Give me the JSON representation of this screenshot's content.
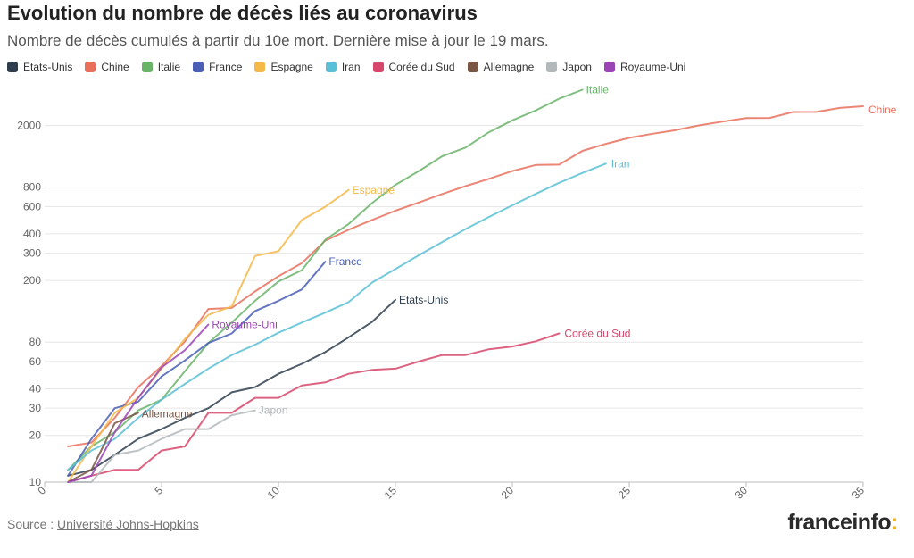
{
  "chart_data": {
    "type": "line",
    "title": "Evolution du nombre de décès liés au coronavirus",
    "subtitle": "Nombre de décès cumulés à partir du 10e mort. Dernière mise à jour le 19 mars.",
    "yscale": "log",
    "xlim": [
      0,
      35
    ],
    "ylim": [
      10,
      3000
    ],
    "x_ticks": [
      "0",
      "5",
      "10",
      "15",
      "20",
      "25",
      "30",
      "35"
    ],
    "y_ticks": [
      "10",
      "20",
      "30",
      "40",
      "60",
      "80",
      "200",
      "300",
      "400",
      "600",
      "800",
      "2000"
    ],
    "legend_position": "top",
    "series": [
      {
        "name": "Etats-Unis",
        "color": "#2e3e4f",
        "label": "Etats-Unis",
        "x": [
          1,
          2,
          3,
          4,
          5,
          6,
          7,
          8,
          9,
          10,
          11,
          12,
          13,
          14,
          15
        ],
        "y": [
          11,
          12,
          15,
          19,
          22,
          26,
          30,
          38,
          41,
          50,
          58,
          69,
          86,
          108,
          150
        ]
      },
      {
        "name": "Chine",
        "color": "#e8705d",
        "label": "Chine",
        "x": [
          1,
          2,
          3,
          4,
          5,
          6,
          7,
          8,
          9,
          10,
          11,
          12,
          13,
          14,
          15,
          16,
          17,
          18,
          19,
          20,
          21,
          22,
          23,
          24,
          25,
          26,
          27,
          28,
          29,
          30,
          31,
          32,
          33,
          34,
          35
        ],
        "y": [
          17,
          18,
          26,
          41,
          56,
          81,
          131,
          133,
          170,
          213,
          259,
          361,
          425,
          491,
          564,
          637,
          723,
          812,
          906,
          1016,
          1113,
          1118,
          1371,
          1523,
          1665,
          1770,
          1868,
          2004,
          2118,
          2236,
          2238,
          2443,
          2445,
          2595,
          2663
        ]
      },
      {
        "name": "Italie",
        "color": "#6ab46a",
        "label": "Italie",
        "x": [
          1,
          2,
          3,
          4,
          5,
          6,
          7,
          8,
          9,
          10,
          11,
          12,
          13,
          14,
          15,
          16,
          17,
          18,
          19,
          20,
          21,
          22,
          23
        ],
        "y": [
          12,
          17,
          21,
          29,
          34,
          52,
          79,
          107,
          148,
          197,
          233,
          366,
          463,
          631,
          827,
          1016,
          1266,
          1441,
          1809,
          2158,
          2503,
          2978,
          3405
        ]
      },
      {
        "name": "France",
        "color": "#4a5fb5",
        "label": "France",
        "x": [
          1,
          2,
          3,
          4,
          5,
          6,
          7,
          8,
          9,
          10,
          11,
          12
        ],
        "y": [
          11,
          19,
          30,
          33,
          48,
          61,
          79,
          91,
          127,
          148,
          175,
          264
        ]
      },
      {
        "name": "Espagne",
        "color": "#f5b94a",
        "label": "Espagne",
        "x": [
          1,
          2,
          3,
          4,
          5,
          6,
          7,
          8,
          9,
          10,
          11,
          12,
          13
        ],
        "y": [
          10,
          17,
          28,
          35,
          54,
          84,
          120,
          136,
          288,
          309,
          491,
          598,
          767
        ]
      },
      {
        "name": "Iran",
        "color": "#5bbfd6",
        "label": "Iran",
        "x": [
          1,
          2,
          3,
          4,
          5,
          6,
          7,
          8,
          9,
          10,
          11,
          12,
          13,
          14,
          15,
          16,
          17,
          18,
          19,
          20,
          21,
          22,
          23,
          24
        ],
        "y": [
          12,
          16,
          19,
          26,
          34,
          43,
          54,
          66,
          77,
          92,
          107,
          124,
          145,
          194,
          237,
          291,
          354,
          429,
          514,
          611,
          724,
          853,
          988,
          1135
        ]
      },
      {
        "name": "Corée du Sud",
        "color": "#d6476b",
        "label": "Corée du Sud",
        "x": [
          1,
          2,
          3,
          4,
          5,
          6,
          7,
          8,
          9,
          10,
          11,
          12,
          13,
          14,
          15,
          16,
          17,
          18,
          19,
          20,
          21,
          22
        ],
        "y": [
          10,
          11,
          12,
          12,
          16,
          17,
          28,
          28,
          35,
          35,
          42,
          44,
          50,
          53,
          54,
          60,
          66,
          66,
          72,
          75,
          81,
          91
        ]
      },
      {
        "name": "Allemagne",
        "color": "#7a5543",
        "label": "Allemagne",
        "x": [
          1,
          2,
          3,
          4
        ],
        "y": [
          10,
          12,
          24,
          28
        ]
      },
      {
        "name": "Japon",
        "color": "#b3b8bb",
        "label": "Japon",
        "x": [
          1,
          2,
          3,
          4,
          5,
          6,
          7,
          8,
          9
        ],
        "y": [
          10,
          10,
          15,
          16,
          19,
          22,
          22,
          27,
          29
        ]
      },
      {
        "name": "Royaume-Uni",
        "color": "#9b44b5",
        "label": "Royaume-Uni",
        "x": [
          1,
          2,
          3,
          4,
          5,
          6,
          7
        ],
        "y": [
          10,
          11,
          21,
          35,
          55,
          71,
          104
        ]
      }
    ]
  },
  "footer": {
    "source_label": "Source :",
    "source_link": "Université Johns-Hopkins",
    "brand": "franceinfo",
    "brand_suffix": ":"
  }
}
